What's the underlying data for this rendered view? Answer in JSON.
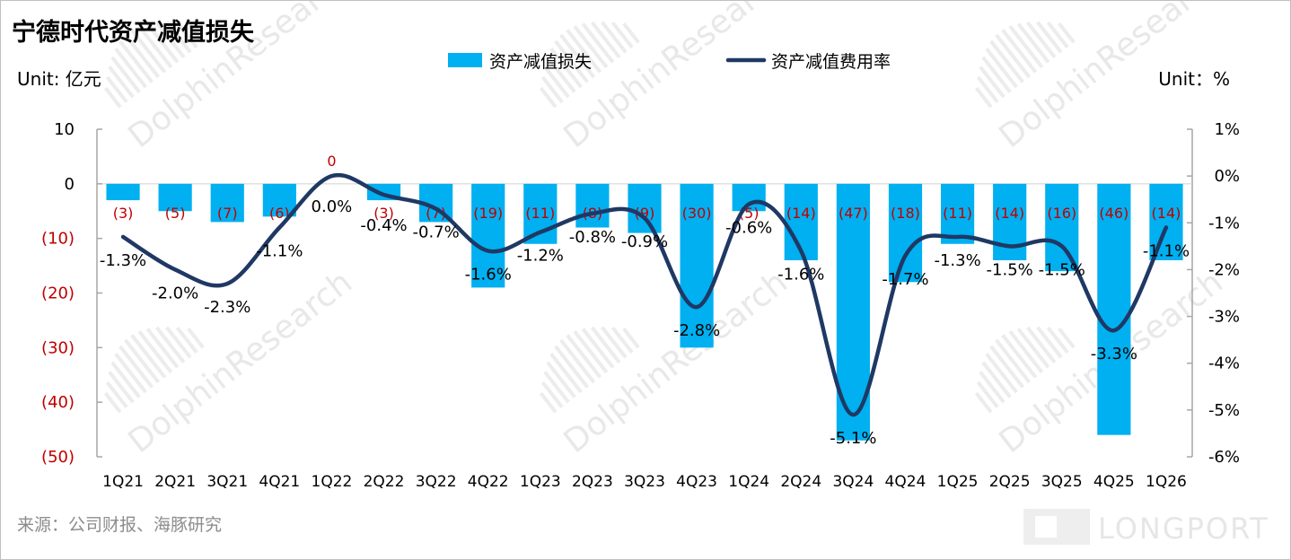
{
  "title": "宁德时代资产减值损失",
  "unit_left": "Unit: 亿元",
  "unit_right": "Unit：%",
  "source": "来源：公司财报、海豚研究",
  "watermark_text": "DolphinResearch",
  "brand_text": "LONGPORT",
  "colors": {
    "bar": "#00b0f0",
    "line": "#1f3864",
    "negative_tick": "#c00000",
    "axis": "#a6a6a6"
  },
  "chart_data": {
    "type": "bar",
    "categories": [
      "1Q21",
      "2Q21",
      "3Q21",
      "4Q21",
      "1Q22",
      "2Q22",
      "3Q22",
      "4Q22",
      "1Q23",
      "2Q23",
      "3Q23",
      "4Q23",
      "1Q24",
      "2Q24",
      "3Q24",
      "4Q24",
      "1Q25",
      "2Q25",
      "3Q25",
      "4Q25",
      "1Q26"
    ],
    "series": [
      {
        "name": "资产减值损失",
        "type": "bar",
        "axis": "left",
        "values": [
          -3,
          -5,
          -7,
          -6,
          0,
          -3,
          -7,
          -19,
          -11,
          -8,
          -9,
          -30,
          -5,
          -14,
          -47,
          -18,
          -11,
          -14,
          -16,
          -46,
          -14
        ],
        "labels": [
          "(3)",
          "(5)",
          "(7)",
          "(6)",
          "0",
          "(3)",
          "(7)",
          "(19)",
          "(11)",
          "(8)",
          "(9)",
          "(30)",
          "(5)",
          "(14)",
          "(47)",
          "(18)",
          "(11)",
          "(14)",
          "(16)",
          "(46)",
          "(14)"
        ]
      },
      {
        "name": "资产减值费用率",
        "type": "line",
        "axis": "right",
        "values": [
          -1.3,
          -2.0,
          -2.3,
          -1.1,
          0.0,
          -0.4,
          -0.7,
          -1.6,
          -1.2,
          -0.8,
          -0.9,
          -2.8,
          -0.6,
          -1.6,
          -5.1,
          -1.7,
          -1.3,
          -1.5,
          -1.5,
          -3.3,
          -1.1
        ],
        "labels": [
          "-1.3%",
          "-2.0%",
          "-2.3%",
          "-1.1%",
          "0.0%",
          "-0.4%",
          "-0.7%",
          "-1.6%",
          "-1.2%",
          "-0.8%",
          "-0.9%",
          "-2.8%",
          "-0.6%",
          "-1.6%",
          "-5.1%",
          "-1.7%",
          "-1.3%",
          "-1.5%",
          "-1.5%",
          "-3.3%",
          "-1.1%"
        ]
      }
    ],
    "y_left": {
      "ylim": [
        -50,
        10
      ],
      "ticks": [
        10,
        0,
        -10,
        -20,
        -30,
        -40,
        -50
      ],
      "tick_labels": [
        "10",
        "0",
        "(10)",
        "(20)",
        "(30)",
        "(40)",
        "(50)"
      ]
    },
    "y_right": {
      "ylim": [
        -6,
        1
      ],
      "ticks": [
        1,
        0,
        -1,
        -2,
        -3,
        -4,
        -5,
        -6
      ],
      "tick_labels": [
        "1%",
        "0%",
        "-1%",
        "-2%",
        "-3%",
        "-4%",
        "-5%",
        "-6%"
      ]
    },
    "legend_position": "top-center",
    "grid": false
  }
}
